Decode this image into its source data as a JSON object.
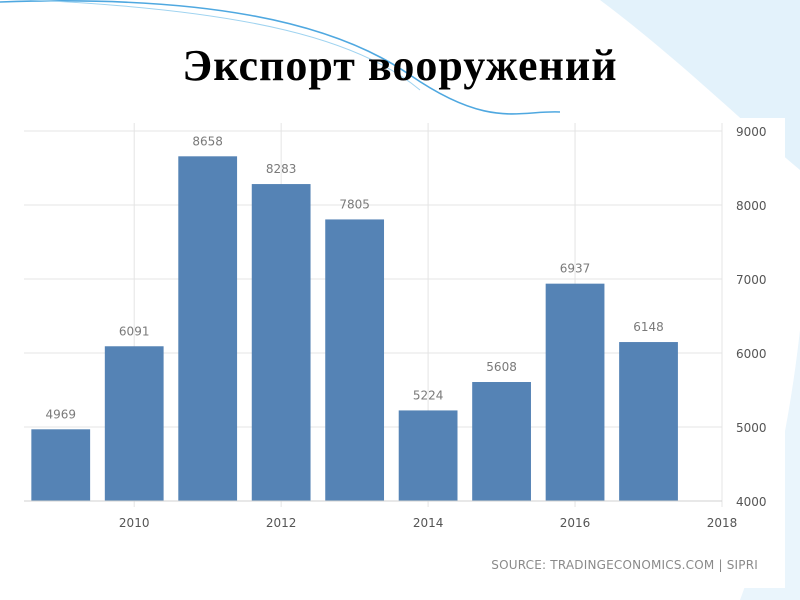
{
  "slide": {
    "title": "Экспорт вооружений"
  },
  "chart_data": {
    "type": "bar",
    "categories": [
      "2009",
      "2010",
      "2011",
      "2012",
      "2013",
      "2014",
      "2015",
      "2016",
      "2017"
    ],
    "values": [
      4969,
      6091,
      8658,
      8283,
      7805,
      5224,
      5608,
      6937,
      6148
    ],
    "data_labels": [
      "4969",
      "6091",
      "8658",
      "8283",
      "7805",
      "5224",
      "5608",
      "6937",
      "6148"
    ],
    "x_ticks": [
      "2010",
      "2012",
      "2014",
      "2016",
      "2018"
    ],
    "y_ticks": [
      "4000",
      "5000",
      "6000",
      "7000",
      "8000",
      "9000"
    ],
    "ylim": [
      4000,
      9000
    ],
    "xlim": [
      2008.5,
      2018
    ],
    "y_axis_side": "right",
    "grid": true,
    "bar_color": "#5583b5",
    "title": "",
    "xlabel": "",
    "ylabel": "",
    "source": "SOURCE: TRADINGECONOMICS.COM | SIPRI"
  },
  "colors": {
    "bar": "#5583b5",
    "grid": "#e4e4e4",
    "label": "#7a7a7a",
    "accent_curve": "#4fa8e0"
  }
}
